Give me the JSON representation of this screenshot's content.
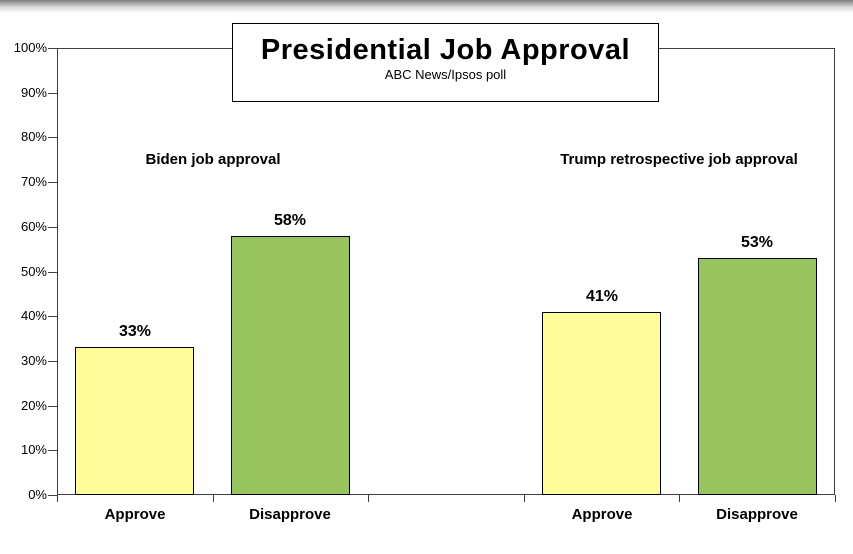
{
  "page": {
    "background": "#ffffff",
    "top_edge_gradient": [
      "#7f7f7f",
      "#ffffff"
    ]
  },
  "chart_data": {
    "type": "bar",
    "title": "Presidential Job Approval",
    "subtitle": "ABC News/Ipsos poll",
    "ylim": [
      0,
      100
    ],
    "y_tick_step": 10,
    "y_tick_labels": [
      "0%",
      "10%",
      "20%",
      "30%",
      "40%",
      "50%",
      "60%",
      "70%",
      "80%",
      "90%",
      "100%"
    ],
    "gridlines": false,
    "legend": "none",
    "categories": [
      "Approve",
      "Disapprove"
    ],
    "groups": [
      {
        "key": "biden",
        "label": "Biden job approval",
        "categories": [
          "Approve",
          "Disapprove"
        ],
        "values": [
          33,
          58
        ],
        "value_labels": [
          "33%",
          "58%"
        ]
      },
      {
        "key": "trump",
        "label": "Trump retrospective job approval",
        "categories": [
          "Approve",
          "Disapprove"
        ],
        "values": [
          41,
          53
        ],
        "value_labels": [
          "41%",
          "53%"
        ]
      }
    ],
    "series_colors": {
      "approve": "#FFFC99",
      "disapprove": "#97C45E"
    },
    "bar_border_color": "#000000",
    "axis_color": "#3f3f3f",
    "text_color": "#000000"
  }
}
